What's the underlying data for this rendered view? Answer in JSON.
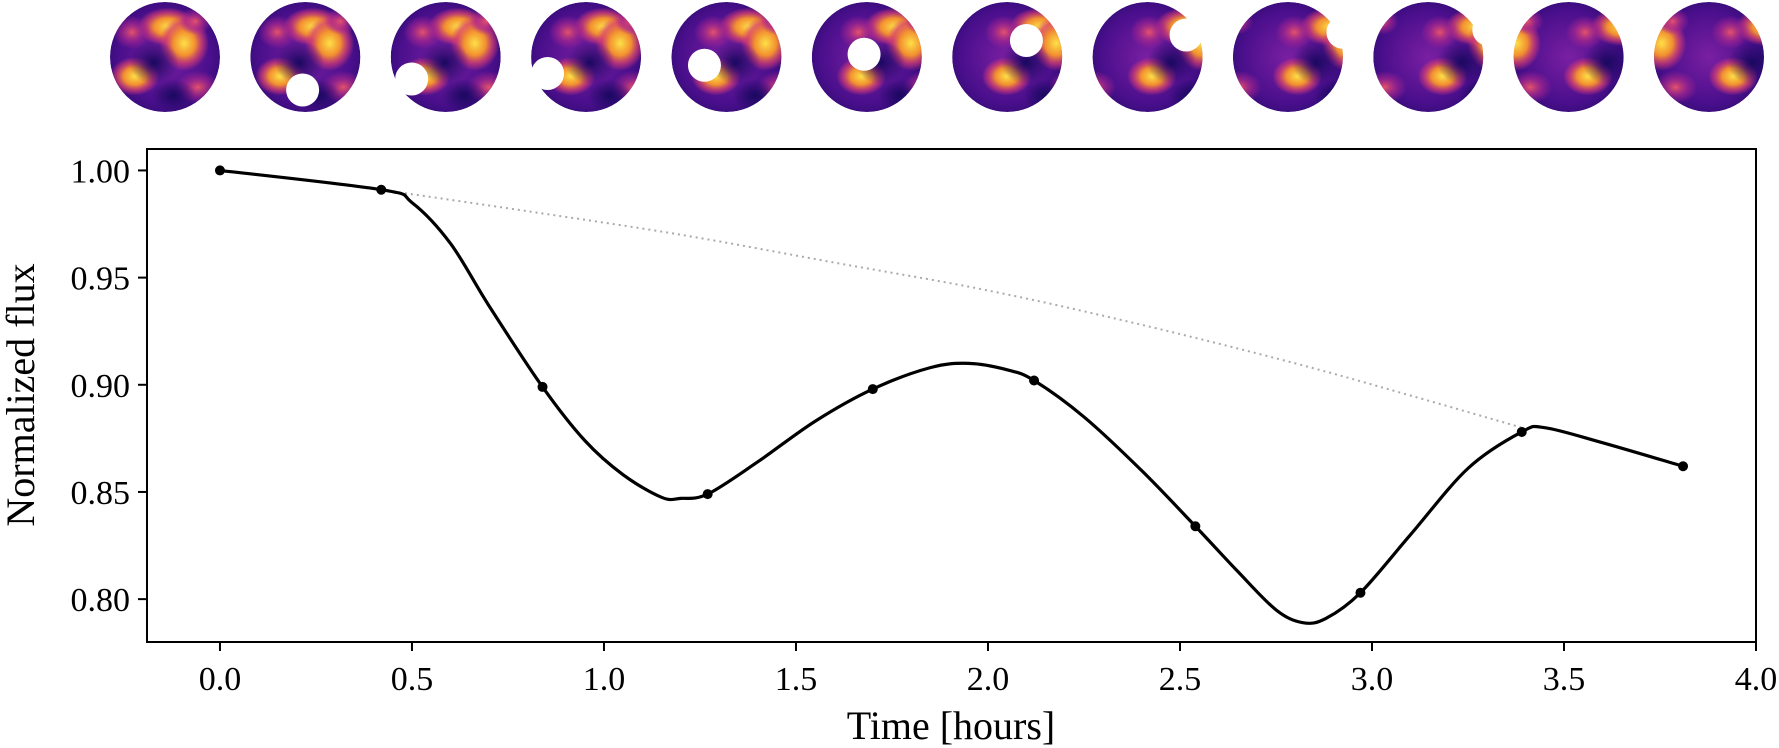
{
  "chart_data": {
    "type": "line",
    "title": "",
    "xlabel": "Time [hours]",
    "ylabel": "Normalized flux",
    "xlim": [
      -0.19,
      4.0
    ],
    "ylim": [
      0.78,
      1.01
    ],
    "grid": false,
    "xticks": [
      0.0,
      0.5,
      1.0,
      1.5,
      2.0,
      2.5,
      3.0,
      3.5,
      4.0
    ],
    "xtick_labels": [
      "0.0",
      "0.5",
      "1.0",
      "1.5",
      "2.0",
      "2.5",
      "3.0",
      "3.5",
      "4.0"
    ],
    "yticks": [
      0.8,
      0.85,
      0.9,
      0.95,
      1.0
    ],
    "ytick_labels": [
      "0.80",
      "0.85",
      "0.90",
      "0.95",
      "1.00"
    ],
    "series": [
      {
        "name": "transit light curve",
        "style": "solid",
        "color": "#000000",
        "x": [
          0.0,
          0.42,
          0.5,
          0.6,
          0.7,
          0.84,
          0.95,
          1.05,
          1.15,
          1.2,
          1.27,
          1.4,
          1.55,
          1.7,
          1.85,
          1.95,
          2.05,
          2.12,
          2.25,
          2.4,
          2.54,
          2.65,
          2.75,
          2.82,
          2.88,
          2.97,
          3.1,
          3.25,
          3.39,
          3.45,
          3.6,
          3.81
        ],
        "y": [
          1.0,
          0.991,
          0.985,
          0.966,
          0.937,
          0.899,
          0.874,
          0.858,
          0.8475,
          0.847,
          0.849,
          0.864,
          0.883,
          0.898,
          0.908,
          0.91,
          0.907,
          0.902,
          0.885,
          0.86,
          0.834,
          0.813,
          0.795,
          0.789,
          0.791,
          0.803,
          0.83,
          0.861,
          0.878,
          0.88,
          0.873,
          0.862
        ]
      },
      {
        "name": "unocculted flux",
        "style": "dotted",
        "color": "#aaaaaa",
        "x": [
          0.42,
          0.8,
          1.2,
          1.6,
          2.0,
          2.4,
          2.8,
          3.1,
          3.39
        ],
        "y": [
          0.991,
          0.981,
          0.97,
          0.957,
          0.944,
          0.928,
          0.91,
          0.895,
          0.88
        ]
      }
    ],
    "markers": {
      "x": [
        0.0,
        0.42,
        0.84,
        1.27,
        1.7,
        2.12,
        2.54,
        2.97,
        3.39,
        3.81
      ],
      "y": [
        1.0,
        0.991,
        0.899,
        0.849,
        0.898,
        0.902,
        0.834,
        0.803,
        0.878,
        0.862
      ]
    },
    "occultor_frames": 12,
    "frame_colors": {
      "dark": "#2b0a6e",
      "mid": "#7a1fa2",
      "pink": "#d63d72",
      "orange": "#f28f30",
      "yellow": "#fde046"
    }
  }
}
